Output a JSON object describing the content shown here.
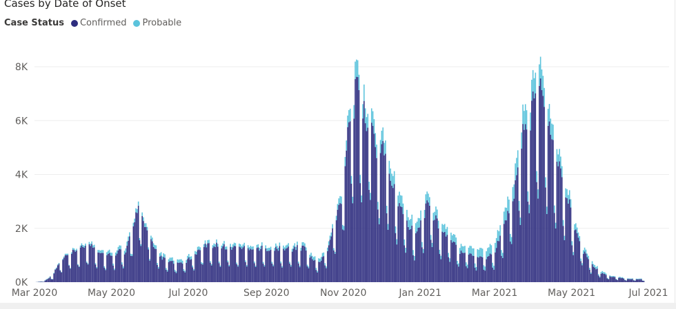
{
  "colors": {
    "confirmed": "#2e2d7f",
    "probable": "#5bc3dc",
    "grid": "#eeeeee",
    "axis_text": "#605e5c"
  },
  "chart_data": {
    "type": "bar",
    "stacked": true,
    "title": "Cases by Date of Onset",
    "legend_title": "Case Status",
    "legend_position": "top-left",
    "grid": true,
    "ylim": [
      0,
      8000
    ],
    "y_ticks": [
      {
        "value": 0,
        "label": "0K"
      },
      {
        "value": 2000,
        "label": "2K"
      },
      {
        "value": 4000,
        "label": "4K"
      },
      {
        "value": 6000,
        "label": "6K"
      },
      {
        "value": 8000,
        "label": "8K"
      }
    ],
    "x_range": [
      "2020-03-01",
      "2021-07-01"
    ],
    "x_ticks": [
      {
        "date": "2020-03-01",
        "label": "Mar 2020"
      },
      {
        "date": "2020-05-01",
        "label": "May 2020"
      },
      {
        "date": "2020-07-01",
        "label": "Jul 2020"
      },
      {
        "date": "2020-09-01",
        "label": "Sep 2020"
      },
      {
        "date": "2020-11-01",
        "label": "Nov 2020"
      },
      {
        "date": "2021-01-01",
        "label": "Jan 2021"
      },
      {
        "date": "2021-03-01",
        "label": "Mar 2021"
      },
      {
        "date": "2021-05-01",
        "label": "May 2021"
      },
      {
        "date": "2021-07-01",
        "label": "Jul 2021"
      }
    ],
    "series": [
      {
        "name": "Confirmed",
        "key": "confirmed",
        "anchors": [
          [
            "2020-03-01",
            0
          ],
          [
            "2020-03-08",
            30
          ],
          [
            "2020-03-15",
            250
          ],
          [
            "2020-03-20",
            700
          ],
          [
            "2020-03-25",
            950
          ],
          [
            "2020-04-01",
            1150
          ],
          [
            "2020-04-08",
            1300
          ],
          [
            "2020-04-12",
            1450
          ],
          [
            "2020-04-20",
            1200
          ],
          [
            "2020-04-26",
            1000
          ],
          [
            "2020-05-01",
            1050
          ],
          [
            "2020-05-08",
            1200
          ],
          [
            "2020-05-12",
            1050
          ],
          [
            "2020-05-18",
            2300
          ],
          [
            "2020-05-21",
            2600
          ],
          [
            "2020-05-24",
            2800
          ],
          [
            "2020-05-27",
            2000
          ],
          [
            "2020-05-30",
            2100
          ],
          [
            "2020-06-03",
            1250
          ],
          [
            "2020-06-10",
            900
          ],
          [
            "2020-06-20",
            700
          ],
          [
            "2020-06-28",
            750
          ],
          [
            "2020-07-05",
            1000
          ],
          [
            "2020-07-12",
            1350
          ],
          [
            "2020-07-20",
            1400
          ],
          [
            "2020-08-01",
            1300
          ],
          [
            "2020-08-15",
            1300
          ],
          [
            "2020-09-01",
            1250
          ],
          [
            "2020-09-15",
            1250
          ],
          [
            "2020-10-01",
            1300
          ],
          [
            "2020-10-08",
            800
          ],
          [
            "2020-10-14",
            800
          ],
          [
            "2020-10-20",
            1350
          ],
          [
            "2020-10-25",
            2300
          ],
          [
            "2020-10-30",
            3100
          ],
          [
            "2020-11-04",
            5800
          ],
          [
            "2020-11-09",
            6900
          ],
          [
            "2020-11-13",
            7300
          ],
          [
            "2020-11-18",
            6000
          ],
          [
            "2020-11-22",
            6300
          ],
          [
            "2020-11-27",
            4800
          ],
          [
            "2020-12-02",
            5200
          ],
          [
            "2020-12-07",
            4000
          ],
          [
            "2020-12-12",
            3300
          ],
          [
            "2020-12-18",
            2700
          ],
          [
            "2020-12-23",
            2100
          ],
          [
            "2020-12-28",
            1800
          ],
          [
            "2021-01-02",
            2300
          ],
          [
            "2021-01-06",
            3100
          ],
          [
            "2021-01-10",
            2700
          ],
          [
            "2021-01-15",
            2100
          ],
          [
            "2021-01-22",
            1700
          ],
          [
            "2021-02-01",
            1200
          ],
          [
            "2021-02-10",
            1050
          ],
          [
            "2021-02-20",
            900
          ],
          [
            "2021-03-01",
            1100
          ],
          [
            "2021-03-05",
            1800
          ],
          [
            "2021-03-12",
            2600
          ],
          [
            "2021-03-18",
            3700
          ],
          [
            "2021-03-22",
            5400
          ],
          [
            "2021-03-27",
            5700
          ],
          [
            "2021-04-01",
            7000
          ],
          [
            "2021-04-06",
            7300
          ],
          [
            "2021-04-10",
            6300
          ],
          [
            "2021-04-15",
            5200
          ],
          [
            "2021-04-20",
            4400
          ],
          [
            "2021-04-27",
            3200
          ],
          [
            "2021-05-03",
            2200
          ],
          [
            "2021-05-10",
            1200
          ],
          [
            "2021-05-17",
            650
          ],
          [
            "2021-05-24",
            350
          ],
          [
            "2021-06-01",
            200
          ],
          [
            "2021-06-15",
            120
          ],
          [
            "2021-06-30",
            100
          ]
        ]
      },
      {
        "name": "Probable",
        "key": "probable",
        "anchors": [
          [
            "2020-03-01",
            0
          ],
          [
            "2020-04-01",
            60
          ],
          [
            "2020-05-15",
            150
          ],
          [
            "2020-06-15",
            120
          ],
          [
            "2020-08-01",
            110
          ],
          [
            "2020-10-01",
            120
          ],
          [
            "2020-10-25",
            150
          ],
          [
            "2020-11-10",
            600
          ],
          [
            "2020-12-01",
            500
          ],
          [
            "2021-01-01",
            350
          ],
          [
            "2021-02-01",
            250
          ],
          [
            "2021-03-01",
            350
          ],
          [
            "2021-03-25",
            700
          ],
          [
            "2021-04-05",
            800
          ],
          [
            "2021-04-20",
            450
          ],
          [
            "2021-05-10",
            150
          ],
          [
            "2021-06-01",
            30
          ],
          [
            "2021-06-30",
            20
          ]
        ]
      }
    ]
  }
}
